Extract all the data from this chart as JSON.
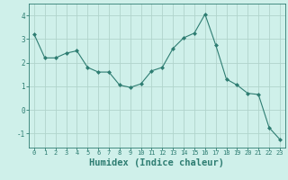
{
  "x": [
    0,
    1,
    2,
    3,
    4,
    5,
    6,
    7,
    8,
    9,
    10,
    11,
    12,
    13,
    14,
    15,
    16,
    17,
    18,
    19,
    20,
    21,
    22,
    23
  ],
  "y": [
    3.2,
    2.2,
    2.2,
    2.4,
    2.5,
    1.8,
    1.6,
    1.6,
    1.05,
    0.95,
    1.1,
    1.65,
    1.8,
    2.6,
    3.05,
    3.25,
    4.05,
    2.75,
    1.3,
    1.05,
    0.7,
    0.65,
    -0.75,
    -1.25
  ],
  "line_color": "#2e7d72",
  "marker": "D",
  "marker_size": 2,
  "bg_color": "#cff0ea",
  "grid_color": "#b0d4cc",
  "xlabel": "Humidex (Indice chaleur)",
  "xlabel_fontsize": 7.5,
  "xlabel_color": "#2e7d72",
  "tick_color": "#2e7d72",
  "yticks": [
    -1,
    0,
    1,
    2,
    3,
    4
  ],
  "xticks": [
    0,
    1,
    2,
    3,
    4,
    5,
    6,
    7,
    8,
    9,
    10,
    11,
    12,
    13,
    14,
    15,
    16,
    17,
    18,
    19,
    20,
    21,
    22,
    23
  ],
  "ylim": [
    -1.6,
    4.5
  ],
  "xlim": [
    -0.5,
    23.5
  ]
}
